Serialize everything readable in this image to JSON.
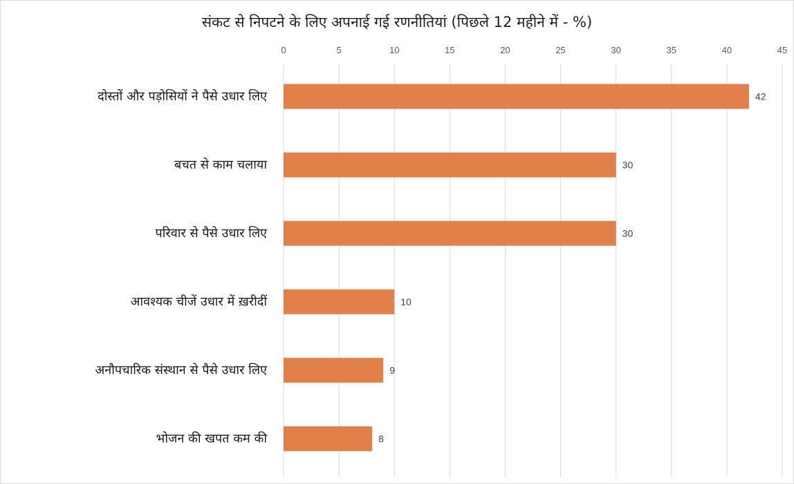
{
  "chart_data": {
    "type": "bar",
    "orientation": "horizontal",
    "title": "संकट से निपटने के लिए अपनाई गई रणनीतियां (पिछले 12 महीने में - %)",
    "categories": [
      "दोस्तों और पड़ोसियों ने पैसे उधार लिए",
      "बचत से काम चलाया",
      "परिवार से पैसे उधार लिए",
      "आवश्यक चीजें उधार में ख़रीदीं",
      "अनौपचारिक संस्थान से पैसे उधार लिए",
      "भोजन की खपत कम की"
    ],
    "values": [
      42,
      30,
      30,
      10,
      9,
      8
    ],
    "data_labels": [
      "42",
      "30",
      "30",
      "10",
      "9",
      "8"
    ],
    "xlim": [
      0,
      45
    ],
    "x_ticks": [
      0,
      5,
      10,
      15,
      20,
      25,
      30,
      35,
      40,
      45
    ],
    "x_axis_position": "top",
    "grid": true,
    "bar_color": "#e0804a",
    "gridline_color": "#d9d9d9"
  }
}
